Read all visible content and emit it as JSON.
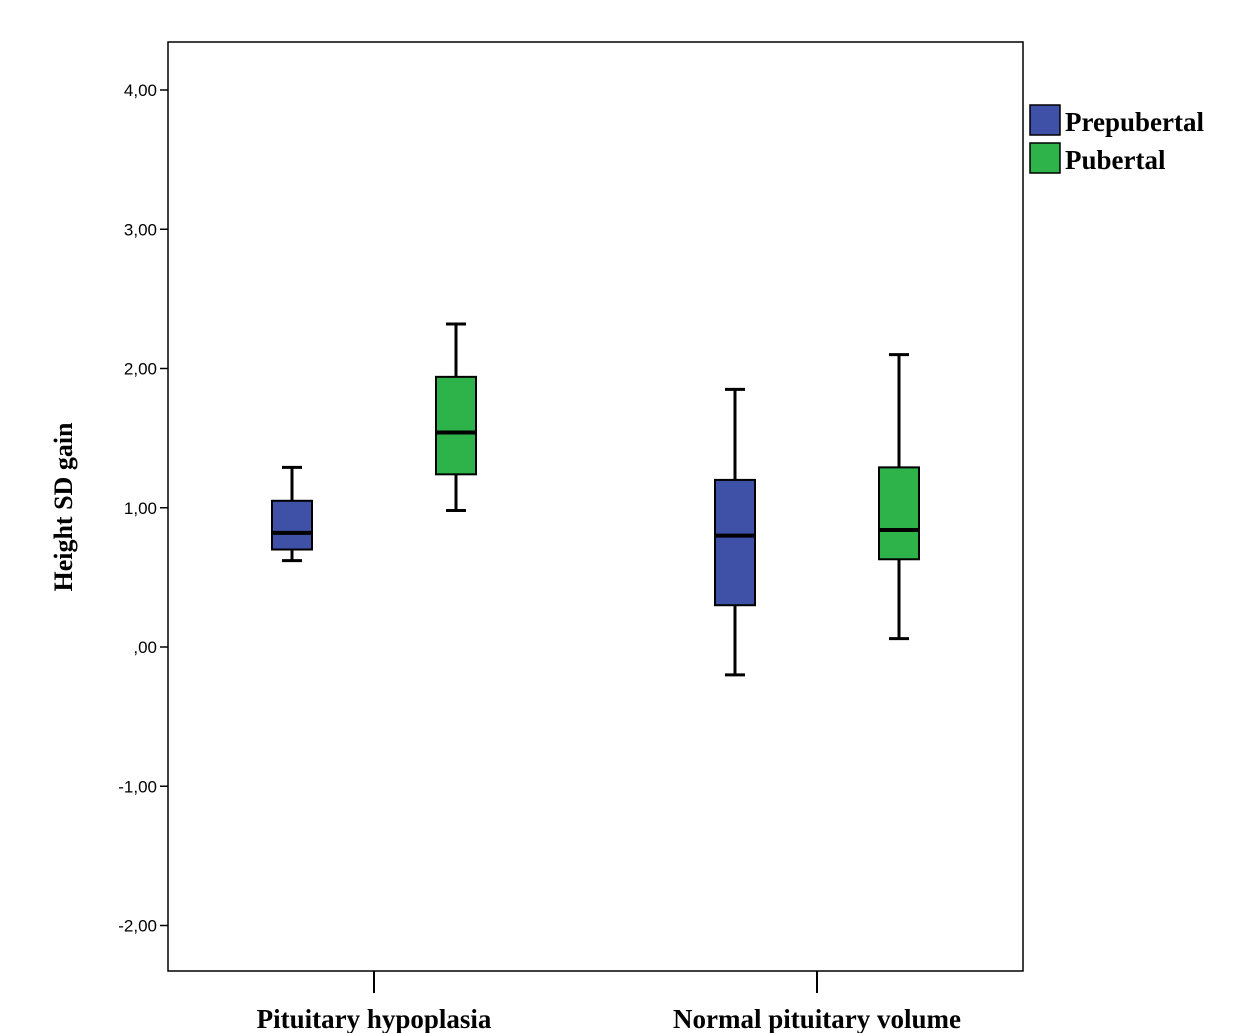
{
  "chart_data": {
    "type": "boxplot",
    "ylabel": "Height SD gain",
    "ylim": [
      -2.35,
      4.35
    ],
    "yticks": [
      4,
      3,
      2,
      1,
      0,
      -1,
      -2
    ],
    "ytick_labels": [
      "4,00",
      "3,00",
      "2,00",
      "1,00",
      ",00",
      "-1,00",
      "-2,00"
    ],
    "categories": [
      "Pituitary hypoplasia",
      "Normal pituitary volume"
    ],
    "series": [
      {
        "name": "Prepubertal",
        "color": "#3f51a6",
        "boxes": [
          {
            "whisker_low": 0.62,
            "q1": 0.7,
            "median": 0.82,
            "q3": 1.05,
            "whisker_high": 1.29
          },
          {
            "whisker_low": -0.2,
            "q1": 0.3,
            "median": 0.8,
            "q3": 1.2,
            "whisker_high": 1.85
          }
        ]
      },
      {
        "name": "Pubertal",
        "color": "#2db34a",
        "boxes": [
          {
            "whisker_low": 0.98,
            "q1": 1.24,
            "median": 1.54,
            "q3": 1.94,
            "whisker_high": 2.32
          },
          {
            "whisker_low": 0.06,
            "q1": 0.63,
            "median": 0.84,
            "q3": 1.29,
            "whisker_high": 2.1
          }
        ]
      }
    ],
    "legend_position": "right"
  }
}
